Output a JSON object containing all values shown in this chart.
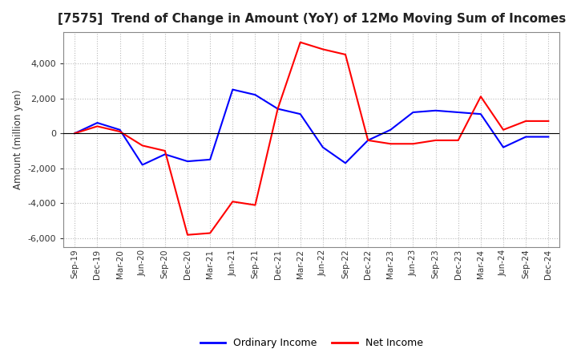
{
  "title": "[7575]  Trend of Change in Amount (YoY) of 12Mo Moving Sum of Incomes",
  "ylabel": "Amount (million yen)",
  "x_labels": [
    "Sep-19",
    "Dec-19",
    "Mar-20",
    "Jun-20",
    "Sep-20",
    "Dec-20",
    "Mar-21",
    "Jun-21",
    "Sep-21",
    "Dec-21",
    "Mar-22",
    "Jun-22",
    "Sep-22",
    "Dec-22",
    "Mar-23",
    "Jun-23",
    "Sep-23",
    "Dec-23",
    "Mar-24",
    "Jun-24",
    "Sep-24",
    "Dec-24"
  ],
  "ordinary_income": [
    0,
    600,
    200,
    -1800,
    -1200,
    -1600,
    -1500,
    2500,
    2200,
    1400,
    1100,
    -800,
    -1700,
    -400,
    200,
    1200,
    1300,
    1200,
    1100,
    -800,
    -200,
    -200
  ],
  "net_income": [
    0,
    400,
    100,
    -700,
    -1000,
    -5800,
    -5700,
    -3900,
    -4100,
    1400,
    5200,
    4800,
    4500,
    -400,
    -600,
    -600,
    -400,
    -400,
    2100,
    200,
    700,
    700
  ],
  "ordinary_income_color": "#0000ff",
  "net_income_color": "#ff0000",
  "ylim": [
    -6500,
    5800
  ],
  "yticks": [
    -6000,
    -4000,
    -2000,
    0,
    2000,
    4000
  ],
  "background_color": "#ffffff",
  "grid_color": "#bbbbbb",
  "title_fontsize": 11,
  "legend_labels": [
    "Ordinary Income",
    "Net Income"
  ]
}
